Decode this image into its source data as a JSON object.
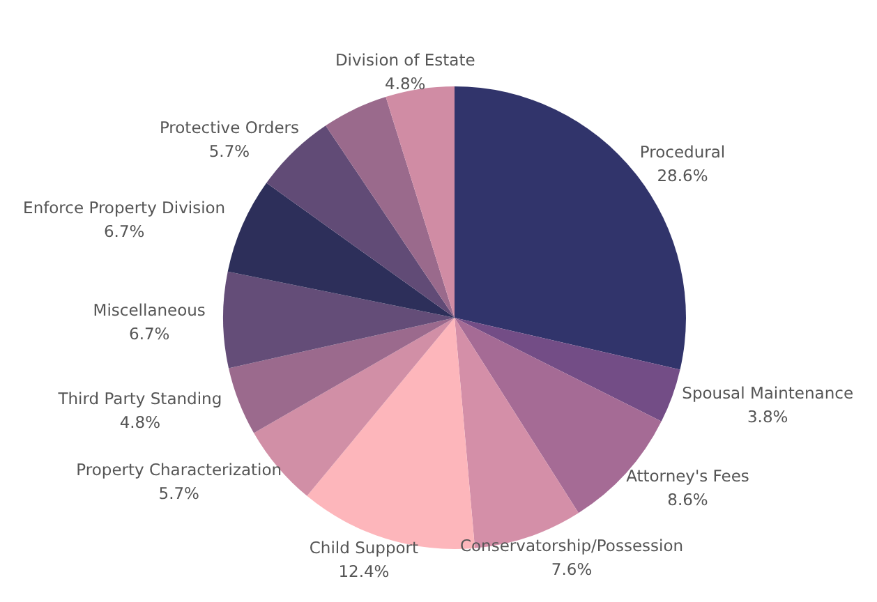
{
  "chart_data": {
    "type": "pie",
    "categories": [
      "Procedural",
      "Spousal Maintenance",
      "Attorney's Fees",
      "Conservatorship/Possession",
      "Child Support",
      "Property Characterization",
      "Third Party Standing",
      "Miscellaneous",
      "Enforce Property Division",
      "Protective Orders",
      null,
      "Division of Estate"
    ],
    "values": [
      28.6,
      3.8,
      8.6,
      7.6,
      12.4,
      5.7,
      4.8,
      6.7,
      6.7,
      5.7,
      4.6,
      4.8
    ],
    "value_labels": [
      "28.6%",
      "3.8%",
      "8.6%",
      "7.6%",
      "12.4%",
      "5.7%",
      "4.8%",
      "6.7%",
      "6.7%",
      "5.7%",
      null,
      "4.8%"
    ],
    "colors": [
      "#31346b",
      "#734d86",
      "#a56b95",
      "#d48fa8",
      "#fdb6bb",
      "#d18fa6",
      "#9b6a8d",
      "#644d78",
      "#2d2f5a",
      "#614b76",
      "#9a6a8c",
      "#d08ca4"
    ]
  }
}
